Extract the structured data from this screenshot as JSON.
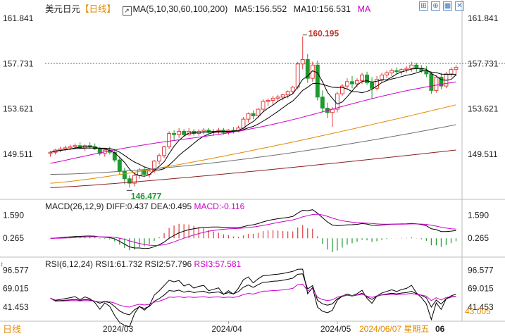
{
  "header": {
    "symbol": "美元日元",
    "period": "【日线】",
    "ma_label": "MA(5,10,30,60,100,200)",
    "ma5": "MA5:156.552",
    "ma10": "MA10:156.531",
    "ma_more": "MA"
  },
  "macd_header": {
    "name": "MACD(26,12,9)",
    "diff": "DIFF:0.437",
    "dea": "DEA:0.495",
    "macd": "MACD:-0.116"
  },
  "rsi_header": {
    "name": "RSI(6,12,24)",
    "rsi1": "RSI1:61.732",
    "rsi2": "RSI2:57.796",
    "rsi3": "RSI3:57.581"
  },
  "price_axis": [
    "161.841",
    "157.731",
    "153.621",
    "149.511"
  ],
  "macd_axis": [
    "1.590",
    "0.265"
  ],
  "rsi_axis": [
    "96.577",
    "69.015",
    "41.453"
  ],
  "rsi_current": "43.005",
  "high_label": "160.195",
  "low_label": "146.477",
  "x_labels": [
    "2024/03",
    "2024/04",
    "2024/05"
  ],
  "date_readout": "2024/06/07 星期五",
  "date_suffix": "06",
  "period_button": "日线",
  "colors": {
    "up": "#e03c3c",
    "down": "#1f9a2e",
    "ma5": "#000000",
    "ma10": "#000000",
    "ma30": "#cc00cc",
    "ma60": "#e08a00",
    "ma100": "#707070",
    "ma200": "#8b2020",
    "diff": "#000000",
    "dea": "#cc00cc",
    "rsi1": "#000000",
    "rsi2": "#000000",
    "rsi3": "#cc00cc"
  },
  "chart_data": {
    "type": "candlestick",
    "price_range": [
      145.5,
      162.6
    ],
    "candles": [
      [
        149.6,
        149.8,
        149.3,
        149.7
      ],
      [
        149.7,
        150.0,
        149.5,
        149.9
      ],
      [
        149.9,
        150.2,
        149.7,
        150.0
      ],
      [
        150.0,
        150.3,
        149.8,
        150.1
      ],
      [
        150.1,
        150.4,
        149.9,
        150.2
      ],
      [
        150.2,
        150.5,
        150.0,
        150.3
      ],
      [
        150.3,
        150.6,
        150.0,
        150.1
      ],
      [
        150.1,
        150.4,
        149.8,
        150.3
      ],
      [
        150.3,
        150.6,
        150.0,
        150.2
      ],
      [
        150.2,
        150.5,
        149.9,
        150.0
      ],
      [
        150.0,
        150.2,
        149.4,
        149.6
      ],
      [
        149.6,
        150.1,
        149.3,
        149.9
      ],
      [
        149.9,
        150.2,
        149.5,
        149.7
      ],
      [
        149.7,
        150.0,
        148.8,
        149.0
      ],
      [
        149.0,
        149.3,
        147.7,
        148.0
      ],
      [
        148.0,
        148.3,
        146.8,
        147.3
      ],
      [
        147.3,
        147.6,
        146.5,
        146.9
      ],
      [
        146.9,
        147.8,
        146.6,
        147.6
      ],
      [
        147.6,
        148.3,
        147.3,
        148.1
      ],
      [
        148.1,
        148.4,
        147.5,
        147.7
      ],
      [
        147.7,
        148.2,
        147.4,
        148.0
      ],
      [
        148.0,
        149.0,
        147.8,
        148.9
      ],
      [
        148.9,
        149.6,
        148.6,
        149.4
      ],
      [
        149.4,
        150.3,
        149.2,
        150.2
      ],
      [
        150.2,
        151.6,
        150.0,
        151.4
      ],
      [
        151.4,
        151.7,
        150.8,
        151.3
      ],
      [
        151.3,
        151.9,
        151.0,
        151.6
      ],
      [
        151.6,
        151.8,
        151.1,
        151.3
      ],
      [
        151.3,
        151.9,
        151.2,
        151.6
      ],
      [
        151.6,
        151.8,
        151.2,
        151.4
      ],
      [
        151.4,
        151.8,
        151.2,
        151.6
      ],
      [
        151.6,
        151.9,
        151.3,
        151.7
      ],
      [
        151.7,
        151.9,
        151.3,
        151.5
      ],
      [
        151.5,
        151.8,
        151.2,
        151.6
      ],
      [
        151.6,
        151.9,
        151.3,
        151.7
      ],
      [
        151.7,
        151.9,
        151.3,
        151.5
      ],
      [
        151.5,
        151.8,
        151.3,
        151.7
      ],
      [
        151.7,
        152.0,
        151.4,
        151.6
      ],
      [
        151.6,
        152.1,
        151.5,
        151.9
      ],
      [
        151.9,
        152.9,
        151.8,
        152.7
      ],
      [
        152.7,
        153.3,
        152.4,
        153.2
      ],
      [
        153.2,
        153.5,
        152.7,
        153.0
      ],
      [
        153.0,
        153.7,
        152.8,
        153.6
      ],
      [
        153.6,
        154.5,
        153.4,
        154.3
      ],
      [
        154.3,
        154.6,
        153.9,
        154.4
      ],
      [
        154.4,
        154.8,
        154.0,
        154.6
      ],
      [
        154.6,
        154.9,
        154.3,
        154.7
      ],
      [
        154.7,
        155.0,
        154.4,
        154.9
      ],
      [
        154.9,
        155.3,
        154.6,
        155.2
      ],
      [
        155.2,
        155.7,
        155.0,
        155.6
      ],
      [
        155.6,
        157.9,
        155.4,
        157.7
      ],
      [
        157.7,
        160.2,
        157.2,
        158.1
      ],
      [
        158.1,
        158.6,
        156.0,
        156.4
      ],
      [
        156.4,
        157.9,
        156.1,
        157.6
      ],
      [
        157.6,
        158.0,
        154.4,
        154.7
      ],
      [
        154.7,
        155.3,
        153.3,
        153.7
      ],
      [
        153.7,
        154.2,
        152.8,
        153.3
      ],
      [
        153.3,
        153.8,
        152.0,
        153.6
      ],
      [
        153.6,
        155.2,
        153.3,
        155.0
      ],
      [
        155.0,
        155.9,
        154.8,
        155.7
      ],
      [
        155.7,
        156.4,
        155.4,
        156.1
      ],
      [
        156.1,
        156.6,
        155.5,
        155.9
      ],
      [
        155.9,
        156.4,
        155.6,
        156.2
      ],
      [
        156.2,
        156.9,
        155.9,
        156.7
      ],
      [
        156.7,
        157.0,
        155.8,
        156.0
      ],
      [
        156.0,
        156.5,
        154.5,
        155.5
      ],
      [
        155.5,
        156.6,
        155.3,
        156.3
      ],
      [
        156.3,
        156.9,
        156.0,
        156.7
      ],
      [
        156.7,
        157.1,
        156.4,
        156.9
      ],
      [
        156.9,
        157.3,
        156.6,
        157.1
      ],
      [
        157.1,
        157.4,
        156.8,
        157.0
      ],
      [
        157.0,
        157.3,
        156.7,
        157.2
      ],
      [
        157.2,
        157.5,
        156.9,
        157.3
      ],
      [
        157.3,
        157.9,
        157.0,
        157.6
      ],
      [
        157.6,
        157.8,
        157.0,
        157.3
      ],
      [
        157.3,
        157.6,
        156.9,
        157.1
      ],
      [
        157.1,
        157.5,
        156.5,
        156.8
      ],
      [
        156.8,
        157.0,
        155.0,
        155.3
      ],
      [
        155.3,
        156.7,
        155.1,
        156.5
      ],
      [
        156.5,
        156.9,
        155.4,
        155.7
      ],
      [
        155.7,
        157.0,
        155.5,
        156.8
      ],
      [
        156.8,
        157.4,
        156.5,
        157.2
      ],
      [
        157.2,
        157.6,
        156.6,
        157.4
      ]
    ],
    "ma_lines": {
      "ma30_end": 156.0,
      "ma60_end": 154.0,
      "ma100_end": 152.2,
      "ma200_end": 149.9
    },
    "macd": {
      "range": [
        -0.7,
        1.9
      ]
    },
    "rsi": {
      "range": [
        25,
        100
      ]
    }
  }
}
